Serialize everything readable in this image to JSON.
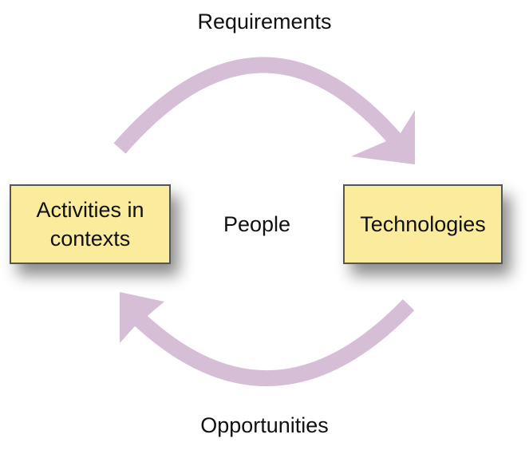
{
  "diagram": {
    "top_label": "Requirements",
    "bottom_label": "Opportunities",
    "center_label": "People",
    "left_box": {
      "line1": "Activities in",
      "line2": "contexts"
    },
    "right_box": {
      "label": "Technologies"
    }
  },
  "colors": {
    "arrow": "#d6bed6",
    "box_fill": "#fbeb9d",
    "box_border": "#555555",
    "text": "#111111"
  }
}
